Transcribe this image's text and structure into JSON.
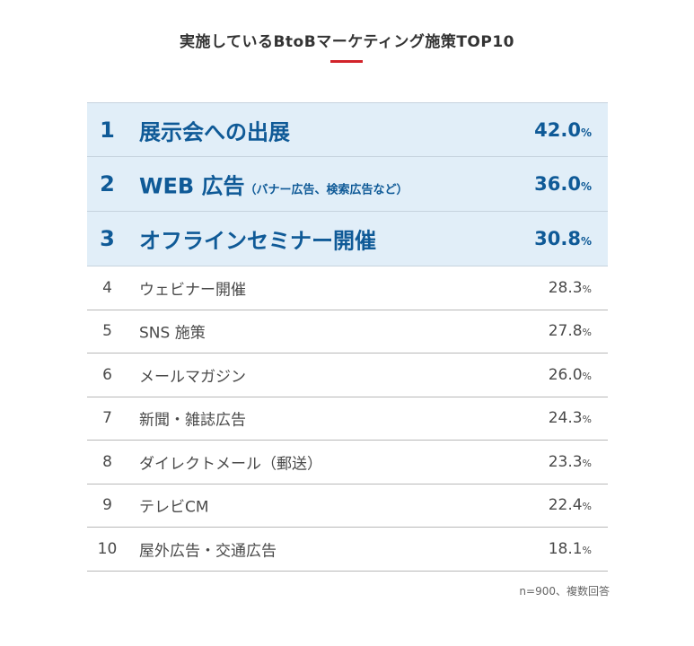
{
  "chart_data": {
    "type": "table",
    "title": "実施しているBtoBマーケティング施策TOP10",
    "unit": "%",
    "note": "n=900、複数回答",
    "rows": [
      {
        "rank": "1",
        "label": "展示会への出展",
        "sub": "",
        "value": "42.0",
        "value_num": 42.0,
        "highlight": true
      },
      {
        "rank": "2",
        "label": "WEB 広告",
        "sub": "（バナー広告、検索広告など）",
        "value": "36.0",
        "value_num": 36.0,
        "highlight": true
      },
      {
        "rank": "3",
        "label": "オフラインセミナー開催",
        "sub": "",
        "value": "30.8",
        "value_num": 30.8,
        "highlight": true
      },
      {
        "rank": "4",
        "label": "ウェビナー開催",
        "sub": "",
        "value": "28.3",
        "value_num": 28.3,
        "highlight": false
      },
      {
        "rank": "5",
        "label": "SNS 施策",
        "sub": "",
        "value": "27.8",
        "value_num": 27.8,
        "highlight": false
      },
      {
        "rank": "6",
        "label": "メールマガジン",
        "sub": "",
        "value": "26.0",
        "value_num": 26.0,
        "highlight": false
      },
      {
        "rank": "7",
        "label": "新聞・雑誌広告",
        "sub": "",
        "value": "24.3",
        "value_num": 24.3,
        "highlight": false
      },
      {
        "rank": "8",
        "label": "ダイレクトメール（郵送）",
        "sub": "",
        "value": "23.3",
        "value_num": 23.3,
        "highlight": false
      },
      {
        "rank": "9",
        "label": "テレビCM",
        "sub": "",
        "value": "22.4",
        "value_num": 22.4,
        "highlight": false
      },
      {
        "rank": "10",
        "label": "屋外広告・交通広告",
        "sub": "",
        "value": "18.1",
        "value_num": 18.1,
        "highlight": false
      }
    ],
    "colors": {
      "highlight_bg": "#e1eef8",
      "highlight_text": "#0f5a97",
      "accent": "#d2232a",
      "text": "#4a4a4a"
    }
  }
}
